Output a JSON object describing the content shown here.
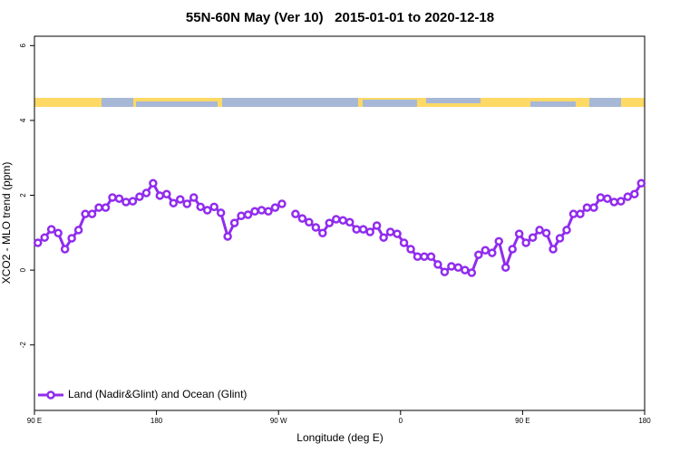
{
  "chart_data": {
    "type": "line",
    "title": "55N-60N May (Ver 10)   2015-01-01 to 2020-12-18",
    "xlabel": "Longitude (deg E)",
    "ylabel": "XCO2 - MLO trend (ppm)",
    "x": [
      92.5,
      97.5,
      102.5,
      107.5,
      112.5,
      117.5,
      122.5,
      127.5,
      132.5,
      137.5,
      142.5,
      147.5,
      152.5,
      157.5,
      162.5,
      167.5,
      172.5,
      177.5,
      182.5,
      187.5,
      192.5,
      197.5,
      202.5,
      207.5,
      212.5,
      217.5,
      222.5,
      227.5,
      232.5,
      237.5,
      242.5,
      247.5,
      252.5,
      257.5,
      262.5,
      267.5,
      272.5,
      277.5,
      282.5,
      287.5,
      292.5,
      297.5,
      302.5,
      307.5,
      312.5,
      317.5,
      322.5,
      327.5,
      332.5,
      337.5,
      342.5,
      347.5,
      352.5,
      357.5,
      362.5,
      367.5,
      372.5,
      377.5,
      382.5,
      387.5,
      392.5,
      397.5,
      402.5,
      407.5,
      412.5,
      417.5,
      422.5,
      427.5,
      432.5,
      437.5,
      442.5,
      447.5,
      452.5,
      457.5,
      462.5,
      467.5,
      472.5,
      477.5,
      482.5,
      487.5,
      492.5,
      497.5,
      502.5,
      507.5,
      512.5,
      517.5,
      522.5,
      527.5,
      532.5,
      537.5
    ],
    "series": [
      {
        "name": "Land (Nadir&Glint) and Ocean (Glint)",
        "color": "#912cee",
        "values": [
          0.73,
          0.87,
          1.09,
          0.99,
          0.56,
          0.85,
          1.07,
          1.5,
          1.5,
          1.67,
          1.67,
          1.94,
          1.91,
          1.82,
          1.84,
          1.96,
          2.06,
          2.32,
          1.99,
          2.03,
          1.79,
          1.89,
          1.77,
          1.94,
          1.69,
          1.6,
          1.69,
          1.53,
          0.9,
          1.26,
          1.45,
          1.48,
          1.57,
          1.6,
          1.57,
          1.67,
          1.77,
          null,
          1.5,
          1.38,
          1.28,
          1.14,
          0.99,
          1.26,
          1.36,
          1.33,
          1.28,
          1.09,
          1.09,
          1.02,
          1.19,
          0.87,
          1.02,
          0.97,
          0.73,
          0.56,
          0.36,
          0.36,
          0.36,
          0.15,
          -0.05,
          0.1,
          0.07,
          0.0,
          -0.07,
          0.41,
          0.53,
          0.46,
          0.77,
          0.07,
          0.56,
          0.97,
          0.73,
          0.87,
          1.07,
          0.99,
          0.56,
          0.85,
          1.07,
          1.5,
          1.5,
          1.67,
          1.67,
          1.94,
          1.91,
          1.82,
          1.84,
          1.96,
          2.03,
          2.32
        ]
      }
    ],
    "xlim": [
      90,
      540
    ],
    "xticks": [
      {
        "value": 90,
        "label": "90 E"
      },
      180,
      {
        "value": 270,
        "label": "90 W"
      },
      {
        "value": 360,
        "label": "0"
      },
      {
        "value": 450,
        "label": "90 E"
      },
      {
        "value": 540,
        "label": "180"
      }
    ],
    "ylim": [
      -3.75,
      6.25
    ],
    "yticks": [
      -2,
      0,
      2,
      4,
      6
    ],
    "legend": "bottom-left"
  }
}
